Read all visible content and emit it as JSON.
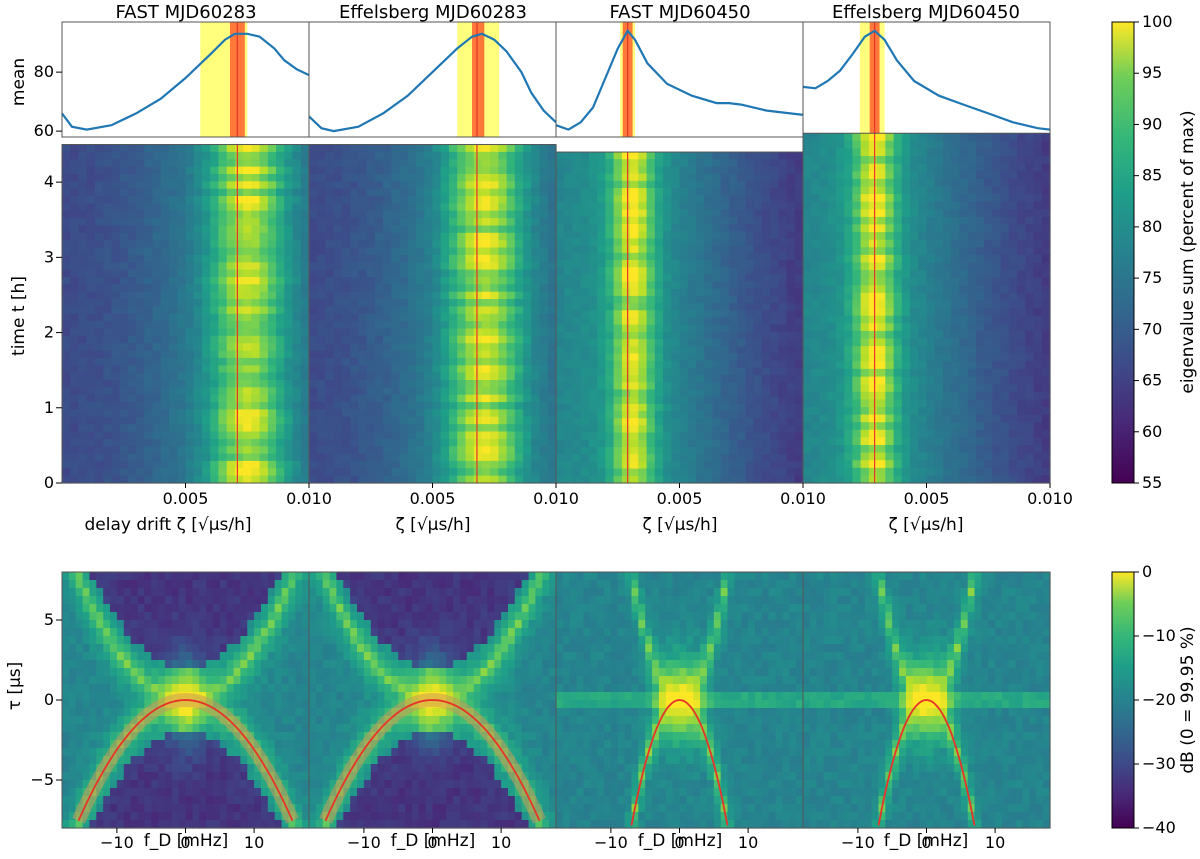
{
  "chart_data": [
    {
      "type": "line",
      "panel": "mean profiles (top row)",
      "ylabel": "mean",
      "ylim": [
        58,
        97
      ],
      "yticks": [
        "60",
        "80"
      ],
      "xlim": [
        0.0,
        0.01
      ],
      "legend": "none",
      "series": [
        {
          "name": "FAST MJD60283",
          "x": [
            0.0,
            0.0004,
            0.001,
            0.002,
            0.003,
            0.004,
            0.005,
            0.006,
            0.0066,
            0.007,
            0.0075,
            0.008,
            0.0086,
            0.009,
            0.0095,
            0.01
          ],
          "y": [
            66,
            61.5,
            60.5,
            62,
            66,
            71,
            78,
            86,
            91,
            93,
            93,
            92,
            88,
            84,
            81,
            79
          ],
          "highlight_band": [
            0.0056,
            0.0075
          ],
          "peak_band": [
            0.0068,
            0.0074
          ],
          "marker": 0.0071
        },
        {
          "name": "Effelsberg MJD60283",
          "x": [
            0.0,
            0.0005,
            0.001,
            0.002,
            0.003,
            0.004,
            0.005,
            0.006,
            0.0066,
            0.007,
            0.0075,
            0.008,
            0.0086,
            0.009,
            0.0095,
            0.01
          ],
          "y": [
            65,
            61,
            60,
            61.5,
            66,
            72,
            80,
            88,
            92,
            93,
            91,
            87,
            80,
            73,
            67,
            63
          ],
          "highlight_band": [
            0.006,
            0.0077
          ],
          "peak_band": [
            0.0066,
            0.0071
          ],
          "marker": 0.0068
        },
        {
          "name": "FAST MJD60450",
          "x": [
            0.0,
            0.0005,
            0.001,
            0.0015,
            0.002,
            0.0025,
            0.0029,
            0.0032,
            0.0037,
            0.0045,
            0.0055,
            0.0065,
            0.007,
            0.0075,
            0.0085,
            0.01
          ],
          "y": [
            62,
            60.5,
            63,
            68,
            78,
            88,
            94,
            91,
            83,
            76,
            72,
            69.5,
            69.5,
            69,
            67,
            65.5
          ],
          "highlight_band": [
            0.0026,
            0.0032
          ],
          "peak_band": [
            0.0027,
            0.0031
          ],
          "marker": 0.0029
        },
        {
          "name": "Effelsberg MJD60450",
          "x": [
            0.0,
            0.0005,
            0.001,
            0.0015,
            0.002,
            0.0025,
            0.0029,
            0.0033,
            0.0038,
            0.0045,
            0.0055,
            0.0065,
            0.0075,
            0.0085,
            0.0095,
            0.01
          ],
          "y": [
            75,
            74.5,
            77,
            80.5,
            86,
            92,
            94,
            91,
            84,
            77,
            72,
            69,
            66,
            63,
            61,
            60.5
          ],
          "highlight_band": [
            0.0023,
            0.0033
          ],
          "peak_band": [
            0.0027,
            0.0031
          ],
          "marker": 0.0029
        }
      ]
    },
    {
      "type": "heatmap",
      "panel": "eigenvalue sum maps (middle row)",
      "xlim": [
        0.0,
        0.01
      ],
      "ylim": [
        0,
        4.6
      ],
      "xticks": [
        "0.005",
        "0.010"
      ],
      "yticks": [
        "0",
        "1",
        "2",
        "3",
        "4"
      ],
      "ylabel": "time t [h]",
      "xlabels": [
        "delay drift ζ [√μs/h]",
        "ζ [√μs/h]",
        "ζ [√μs/h]",
        "ζ [√μs/h]"
      ],
      "panel_titles": [
        "FAST MJD60283",
        "Effelsberg MJD60283",
        "FAST MJD60450",
        "Effelsberg MJD60450"
      ],
      "t_max": [
        4.5,
        4.5,
        4.4,
        4.65
      ],
      "ridge_center": [
        0.0075,
        0.0071,
        0.0031,
        0.0029
      ],
      "marker": [
        0.0071,
        0.0068,
        0.0029,
        0.0029
      ],
      "colorbar": {
        "label": "eigenvalue sum (percent of max)",
        "range": [
          55,
          100
        ],
        "ticks": [
          "55",
          "60",
          "65",
          "70",
          "75",
          "80",
          "85",
          "90",
          "95",
          "100"
        ],
        "colormap": "viridis"
      }
    },
    {
      "type": "heatmap",
      "panel": "secondary spectra (bottom row)",
      "xlim": [
        -18,
        18
      ],
      "ylim": [
        -8,
        8
      ],
      "xticks": [
        "−10",
        "0",
        "10"
      ],
      "yticks": [
        "−5",
        "0",
        "5"
      ],
      "xlabel": "f_D [mHz]",
      "ylabel": "τ [μs]",
      "curvature": [
        0.031,
        0.031,
        0.16,
        0.16
      ],
      "colorbar": {
        "label": "dB (0 = 99.95 %)",
        "range": [
          -40,
          0
        ],
        "ticks": [
          "−40",
          "−30",
          "−20",
          "−10",
          "0"
        ],
        "colormap": "viridis"
      }
    }
  ],
  "text": {
    "titles": [
      "FAST MJD60283",
      "Effelsberg MJD60283",
      "FAST MJD60450",
      "Effelsberg MJD60450"
    ],
    "mean_label": "mean",
    "time_label": "time t [h]",
    "xlabel_first": "delay drift ζ [√μs/h]",
    "xlabel_other": "ζ [√μs/h]",
    "fd_label": "f_D [mHz]",
    "tau_label": "τ [μs]",
    "cbar1_label": "eigenvalue sum (percent of max)",
    "cbar2_label": "dB (0 = 99.95 %)"
  },
  "colors": {
    "line": "#1f77b4",
    "highlight_band": "#ffff66",
    "peak_band": "#ff6a33",
    "marker": "#e8332a"
  }
}
